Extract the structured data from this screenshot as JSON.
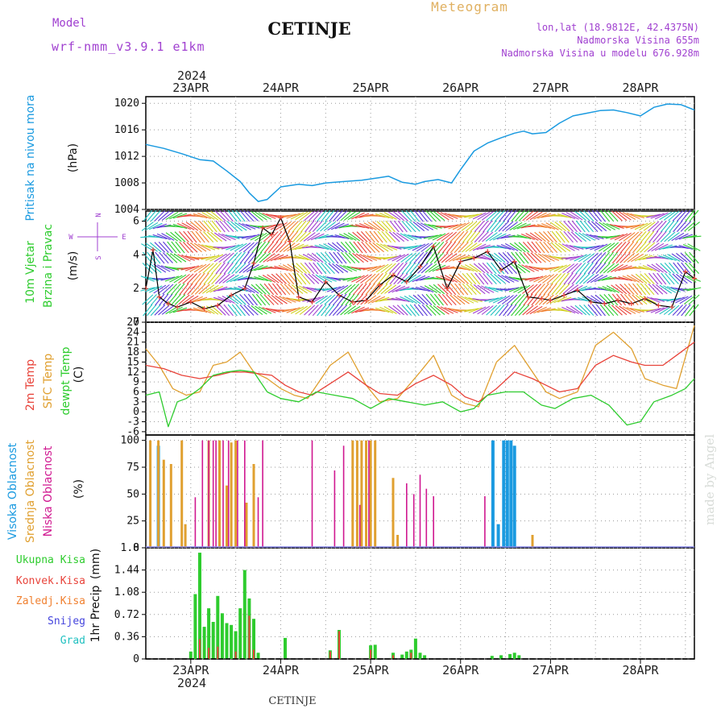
{
  "header": {
    "model_label": "Model",
    "model_name": "wrf-nmm_v3.9.1 e1km",
    "station": "CETINJE",
    "meteogram": "Meteogram",
    "lonlat": "lon,lat (18.9812E, 42.4375N)",
    "altitude": "Nadmorska Visina 655m",
    "model_altitude": "Nadmorska Visina u modelu 676.928m",
    "year": "2024",
    "footer_station": "CETINJE",
    "credit": "made by Angel"
  },
  "colors": {
    "pressure": "#1a9ae0",
    "wind_speed": "#000000",
    "t2m": "#e8433a",
    "tsfc": "#e0a030",
    "dewpt": "#2ecc2e",
    "cloud_high": "#1a9ae0",
    "cloud_mid": "#e0a030",
    "cloud_low": "#d01890",
    "precip_total": "#2ecc2e",
    "precip_conv": "#e8433a",
    "precip_frozen": "#f08030",
    "precip_snow": "#4444dd",
    "precip_graupel": "#20c0c0",
    "header_purple": "#a040d0",
    "header_gold": "#e0b060"
  },
  "chart_data": [
    {
      "type": "line",
      "panel": "pressure",
      "ylabel_main": "Pritisak na nivou mora",
      "unit": "(hPa)",
      "ylim": [
        1004,
        1021
      ],
      "yticks": [
        "1004",
        "1008",
        "1012",
        "1016",
        "1020"
      ],
      "xticks": [
        "23APR",
        "24APR",
        "25APR",
        "26APR",
        "27APR",
        "28APR"
      ],
      "x_range_days": [
        -0.5,
        5.6
      ],
      "grid": true,
      "series": [
        {
          "x": [
            -0.5,
            -0.3,
            -0.1,
            0.1,
            0.25,
            0.4,
            0.55,
            0.65,
            0.75,
            0.85,
            1.0,
            1.2,
            1.35,
            1.5,
            1.7,
            1.9,
            2.0,
            2.1,
            2.2,
            2.35,
            2.5,
            2.6,
            2.75,
            2.9,
            3.0,
            3.15,
            3.3,
            3.45,
            3.6,
            3.7,
            3.8,
            3.95,
            4.1,
            4.25,
            4.4,
            4.55,
            4.7,
            4.85,
            5.0,
            5.15,
            5.3,
            5.45,
            5.6
          ],
          "values": [
            1013.8,
            1013.2,
            1012.4,
            1011.5,
            1011.3,
            1009.8,
            1008.2,
            1006.5,
            1005.2,
            1005.5,
            1007.4,
            1007.8,
            1007.6,
            1008.0,
            1008.2,
            1008.4,
            1008.6,
            1008.8,
            1009.0,
            1008.1,
            1007.8,
            1008.2,
            1008.5,
            1008.0,
            1010.0,
            1012.8,
            1014.0,
            1014.8,
            1015.5,
            1015.8,
            1015.4,
            1015.6,
            1017.0,
            1018.1,
            1018.5,
            1018.9,
            1019.0,
            1018.6,
            1018.1,
            1019.4,
            1019.9,
            1019.8,
            1019.0
          ]
        }
      ]
    },
    {
      "type": "line",
      "panel": "wind",
      "ylabel_main": "10m Vjetar",
      "ylabel_sub": "Brzina i Pravac",
      "unit": "(m/s)",
      "compass_labels": [
        "N",
        "W",
        "E",
        "S"
      ],
      "ylim": [
        0,
        6.6
      ],
      "yticks": [
        "0",
        "2",
        "4",
        "6"
      ],
      "grid": true,
      "series": [
        {
          "name": "speed",
          "x": [
            -0.5,
            -0.42,
            -0.35,
            -0.25,
            -0.15,
            0.0,
            0.15,
            0.3,
            0.45,
            0.6,
            0.7,
            0.8,
            0.9,
            1.0,
            1.1,
            1.2,
            1.35,
            1.5,
            1.65,
            1.8,
            1.95,
            2.1,
            2.25,
            2.4,
            2.55,
            2.7,
            2.85,
            3.0,
            3.15,
            3.3,
            3.45,
            3.6,
            3.75,
            3.9,
            4.0,
            4.15,
            4.3,
            4.45,
            4.6,
            4.75,
            4.9,
            5.05,
            5.2,
            5.35,
            5.5,
            5.6
          ],
          "values": [
            2.0,
            4.3,
            1.5,
            1.1,
            0.9,
            1.2,
            0.8,
            1.0,
            1.6,
            2.0,
            3.5,
            5.6,
            5.2,
            6.2,
            4.8,
            1.5,
            1.2,
            2.4,
            1.6,
            1.2,
            1.3,
            2.2,
            2.8,
            2.4,
            3.3,
            4.5,
            2.0,
            3.6,
            3.8,
            4.2,
            3.1,
            3.6,
            1.5,
            1.4,
            1.3,
            1.6,
            1.9,
            1.2,
            1.1,
            1.3,
            1.1,
            1.4,
            1.0,
            0.9,
            3.0,
            2.6
          ]
        }
      ]
    },
    {
      "type": "line",
      "panel": "temperature",
      "ylabel_main": "2m Temp",
      "ylabel_sub": "SFC Temp",
      "ylabel_third": "dewpt Temp",
      "unit": "(C)",
      "ylim": [
        -7,
        27
      ],
      "yticks": [
        "-6",
        "-3",
        "0",
        "3",
        "6",
        "9",
        "12",
        "15",
        "18",
        "21",
        "24",
        "27"
      ],
      "grid": true,
      "series": [
        {
          "name": "2m Temp",
          "x": [
            -0.5,
            -0.3,
            -0.1,
            0.1,
            0.3,
            0.45,
            0.6,
            0.75,
            0.9,
            1.05,
            1.2,
            1.35,
            1.55,
            1.75,
            1.95,
            2.1,
            2.3,
            2.5,
            2.7,
            2.9,
            3.05,
            3.2,
            3.4,
            3.6,
            3.8,
            3.95,
            4.1,
            4.3,
            4.5,
            4.7,
            4.9,
            5.05,
            5.25,
            5.4,
            5.6
          ],
          "values": [
            14,
            13,
            11,
            10,
            11,
            12,
            12,
            11.5,
            11,
            8,
            6,
            5,
            8.5,
            12,
            8,
            5.5,
            5,
            8.5,
            11,
            8,
            4.5,
            3,
            7,
            12,
            10,
            8,
            6,
            7,
            14,
            17,
            15,
            14,
            14,
            17,
            21
          ]
        },
        {
          "name": "SFC Temp",
          "x": [
            -0.5,
            -0.35,
            -0.2,
            -0.05,
            0.1,
            0.25,
            0.4,
            0.55,
            0.7,
            0.85,
            1.0,
            1.15,
            1.3,
            1.55,
            1.75,
            1.95,
            2.1,
            2.3,
            2.55,
            2.7,
            2.9,
            3.05,
            3.2,
            3.4,
            3.6,
            3.8,
            3.95,
            4.1,
            4.3,
            4.5,
            4.7,
            4.9,
            5.05,
            5.25,
            5.4,
            5.6
          ],
          "values": [
            19,
            14,
            7,
            5,
            6,
            14,
            15,
            18,
            12,
            10,
            7,
            5,
            4,
            14,
            18,
            8,
            3,
            4,
            12,
            17,
            5,
            2.5,
            1.5,
            15,
            20,
            12,
            6,
            4,
            6,
            20,
            24,
            19,
            10,
            8,
            7,
            26
          ]
        },
        {
          "name": "dewpt Temp",
          "x": [
            -0.5,
            -0.35,
            -0.25,
            -0.15,
            -0.05,
            0.1,
            0.25,
            0.4,
            0.55,
            0.7,
            0.85,
            1.0,
            1.2,
            1.4,
            1.6,
            1.8,
            2.0,
            2.2,
            2.4,
            2.6,
            2.8,
            3.0,
            3.15,
            3.3,
            3.5,
            3.7,
            3.9,
            4.05,
            4.25,
            4.45,
            4.65,
            4.85,
            5.0,
            5.15,
            5.35,
            5.5,
            5.6
          ],
          "values": [
            5,
            6,
            -4.5,
            3,
            4,
            7,
            11,
            12,
            12.5,
            12,
            6,
            4,
            3,
            6,
            5,
            4,
            1,
            4,
            3,
            2,
            3,
            0,
            1,
            5,
            6,
            6,
            2,
            1,
            4,
            5,
            2,
            -4,
            -3,
            3,
            5,
            7,
            10
          ]
        }
      ]
    },
    {
      "type": "bar",
      "panel": "clouds",
      "ylabel_main": "Visoka Oblacnost",
      "ylabel_sub": "Srednja Oblacnost",
      "ylabel_third": "Niska Oblacnost",
      "unit": "(%)",
      "ylim": [
        0,
        105
      ],
      "yticks": [
        "0",
        "25",
        "50",
        "75",
        "100"
      ],
      "grid": true,
      "series": [
        {
          "name": "Visoka Oblacnost",
          "x": [
            -0.36,
            3.36,
            3.42,
            3.48,
            3.52,
            3.56,
            3.6
          ],
          "values": [
            95,
            100,
            22,
            100,
            100,
            100,
            95
          ]
        },
        {
          "name": "Srednja Oblacnost",
          "x": [
            -0.45,
            -0.36,
            -0.3,
            -0.22,
            -0.1,
            -0.06,
            0.2,
            0.32,
            0.4,
            0.45,
            0.5,
            0.62,
            0.7,
            1.8,
            1.85,
            1.9,
            1.95,
            2.0,
            2.05,
            2.25,
            2.3,
            3.8
          ],
          "values": [
            100,
            100,
            82,
            78,
            100,
            22,
            100,
            100,
            58,
            98,
            100,
            42,
            78,
            100,
            100,
            100,
            100,
            100,
            100,
            65,
            12,
            12
          ]
        },
        {
          "name": "Niska Oblacnost",
          "x": [
            0.05,
            0.13,
            0.2,
            0.25,
            0.28,
            0.36,
            0.42,
            0.52,
            0.6,
            0.75,
            0.8,
            1.35,
            1.6,
            1.7,
            1.88,
            1.98,
            2.4,
            2.48,
            2.55,
            2.62,
            2.7,
            3.27
          ],
          "values": [
            47,
            100,
            100,
            100,
            100,
            100,
            100,
            100,
            100,
            47,
            100,
            100,
            72,
            95,
            40,
            100,
            60,
            50,
            68,
            55,
            48,
            48
          ]
        }
      ]
    },
    {
      "type": "bar",
      "panel": "precip",
      "ylabel_main": "1hr Precip",
      "unit": "(mm)",
      "legend": [
        "Ukupna Kisa",
        "Konvek.Kisa",
        "Zaledj.Kisa",
        "Snijeg",
        "Grad"
      ],
      "ylim": [
        0,
        1.8
      ],
      "yticks": [
        "0",
        "0.36",
        "0.72",
        "1.08",
        "1.44",
        "1.8"
      ],
      "grid": true,
      "series": [
        {
          "name": "Ukupna Kisa",
          "x": [
            0.0,
            0.05,
            0.1,
            0.15,
            0.2,
            0.25,
            0.3,
            0.35,
            0.4,
            0.45,
            0.5,
            0.55,
            0.6,
            0.65,
            0.7,
            0.75,
            1.05,
            1.55,
            1.65,
            2.0,
            2.05,
            2.25,
            2.35,
            2.4,
            2.45,
            2.5,
            2.55,
            2.6,
            3.35,
            3.45,
            3.55,
            3.6,
            3.65
          ],
          "values": [
            0.12,
            1.05,
            1.72,
            0.52,
            0.82,
            0.6,
            1.02,
            0.74,
            0.58,
            0.55,
            0.45,
            0.82,
            1.44,
            0.98,
            0.65,
            0.1,
            0.34,
            0.14,
            0.47,
            0.22,
            0.23,
            0.1,
            0.07,
            0.12,
            0.15,
            0.33,
            0.1,
            0.06,
            0.05,
            0.06,
            0.08,
            0.1,
            0.06
          ]
        },
        {
          "name": "Konvek.Kisa",
          "x": [
            0.1,
            0.2,
            0.3,
            0.5,
            0.65,
            0.7,
            1.55,
            1.65,
            2.0,
            2.25,
            2.45
          ],
          "values": [
            0.32,
            0.18,
            0.2,
            0.12,
            0.7,
            0.15,
            0.12,
            0.45,
            0.15,
            0.06,
            0.1
          ]
        }
      ]
    }
  ]
}
